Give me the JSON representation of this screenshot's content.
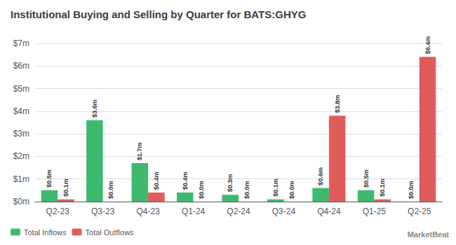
{
  "chart_data": {
    "type": "bar",
    "title": "Institutional Buying and Selling by Quarter for BATS:GHYG",
    "categories": [
      "Q2-23",
      "Q3-23",
      "Q4-23",
      "Q1-24",
      "Q2-24",
      "Q3-24",
      "Q4-24",
      "Q1-25",
      "Q2-25"
    ],
    "series": [
      {
        "name": "Total Inflows",
        "color": "#3dba6e",
        "values": [
          0.5,
          3.6,
          1.7,
          0.4,
          0.3,
          0.1,
          0.6,
          0.5,
          0.0
        ],
        "value_labels": [
          "$0.5m",
          "$3.6m",
          "$1.7m",
          "$0.4m",
          "$0.3m",
          "$0.1m",
          "$0.6m",
          "$0.5m",
          "$0.0m"
        ]
      },
      {
        "name": "Total Outflows",
        "color": "#e05c5c",
        "values": [
          0.1,
          0.0,
          0.4,
          0.0,
          0.0,
          0.0,
          3.8,
          0.1,
          6.4
        ],
        "value_labels": [
          "$0.1m",
          "$0.0m",
          "$0.4m",
          "$0.0m",
          "$0.0m",
          "$0.0m",
          "$3.8m",
          "$0.1m",
          "$6.4m"
        ]
      }
    ],
    "ylim": [
      0,
      7
    ],
    "yticks": [
      {
        "value": 0,
        "label": "$0m"
      },
      {
        "value": 1,
        "label": "$1m"
      },
      {
        "value": 2,
        "label": "$2m"
      },
      {
        "value": 3,
        "label": "$3m"
      },
      {
        "value": 4,
        "label": "$4m"
      },
      {
        "value": 5,
        "label": "$5m"
      },
      {
        "value": 6,
        "label": "$6m"
      },
      {
        "value": 7,
        "label": "$7m"
      }
    ],
    "grid": true,
    "legend": "lower left",
    "data_labels": true,
    "annotations": [
      "MarketBeat"
    ]
  }
}
